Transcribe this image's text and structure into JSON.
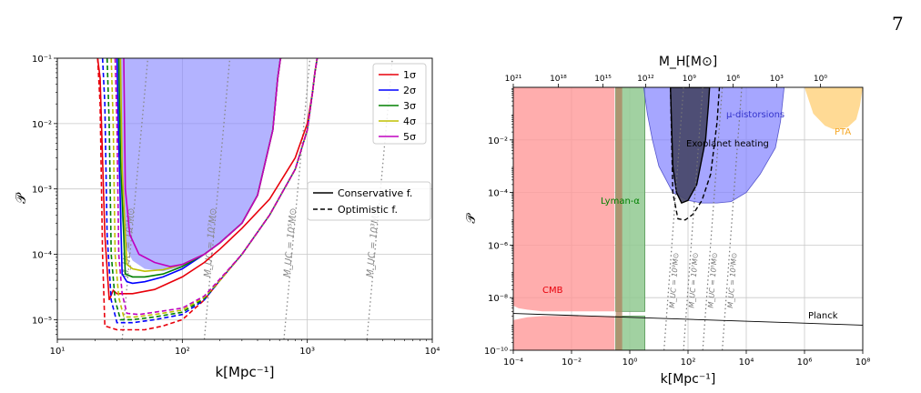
{
  "page_number": "7",
  "chart_data": [
    {
      "type": "line",
      "panel": "left",
      "xlabel": "k[Mpc⁻¹]",
      "ylabel": "𝒫",
      "xscale": "log",
      "yscale": "log",
      "xlim": [
        10,
        10000
      ],
      "ylim": [
        5e-06,
        0.1
      ],
      "x_ticks": [
        {
          "value": 10,
          "label": "10¹"
        },
        {
          "value": 100,
          "label": "10²"
        },
        {
          "value": 1000,
          "label": "10³"
        },
        {
          "value": 10000,
          "label": "10⁴"
        }
      ],
      "y_ticks": [
        {
          "value": 1e-05,
          "label": "10⁻⁵"
        },
        {
          "value": 0.0001,
          "label": "10⁻⁴"
        },
        {
          "value": 0.001,
          "label": "10⁻³"
        },
        {
          "value": 0.01,
          "label": "10⁻²"
        },
        {
          "value": 0.1,
          "label": "10⁻¹"
        }
      ],
      "grid": true,
      "legend_sigma": {
        "placement": "top-right",
        "entries": [
          {
            "name": "1σ",
            "color": "#e8000b"
          },
          {
            "name": "2σ",
            "color": "#0000ff"
          },
          {
            "name": "3σ",
            "color": "#008000"
          },
          {
            "name": "4σ",
            "color": "#bfbf00"
          },
          {
            "name": "5σ",
            "color": "#bf00bf"
          }
        ]
      },
      "legend_style": {
        "placement": "center-right",
        "entries": [
          {
            "name": "Conservative f.",
            "dash": "solid"
          },
          {
            "name": "Optimistic f.",
            "dash": "dashed"
          }
        ]
      },
      "mass_lines": [
        {
          "label": "M_UC = 10⁷M⊙",
          "x_bottom": 150,
          "x_top": 240
        },
        {
          "label": "M_UC = 10⁵M⊙",
          "x_bottom": 650,
          "x_top": 1050
        },
        {
          "label": "M_UC = 10³M⊙",
          "x_bottom": 3000,
          "x_top": 4800
        },
        {
          "label": "M_UC = 10⁹M⊙",
          "x_bottom": 33,
          "x_top": 53
        }
      ],
      "filled_region": {
        "color": "#8080ff",
        "x": [
          30,
          32,
          35,
          40,
          50,
          70,
          100,
          150,
          200,
          300,
          400,
          530,
          580,
          610,
          620
        ],
        "y": [
          0.1,
          0.0005,
          0.00013,
          8e-05,
          6e-05,
          5.5e-05,
          6.5e-05,
          0.0001,
          0.00015,
          0.0003,
          0.0008,
          0.008,
          0.05,
          0.1,
          0.1
        ]
      },
      "series": [
        {
          "name": "1σ conservative",
          "color": "#e8000b",
          "dash": "solid",
          "x": [
            21,
            22,
            24,
            26,
            28,
            30,
            40,
            60,
            100,
            150,
            200,
            300,
            500,
            800,
            1000,
            1100,
            1150,
            1200
          ],
          "y": [
            0.1,
            0.05,
            0.0002,
            2e-05,
            2.8e-05,
            2.5e-05,
            2.5e-05,
            2.9e-05,
            4.5e-05,
            7.5e-05,
            0.00012,
            0.00025,
            0.0007,
            0.003,
            0.01,
            0.03,
            0.06,
            0.1
          ]
        },
        {
          "name": "2σ conservative",
          "color": "#0000ff",
          "dash": "solid",
          "x": [
            30,
            31,
            33,
            36,
            40,
            50,
            70,
            100,
            150,
            200,
            300,
            400,
            530,
            580,
            610,
            620
          ],
          "y": [
            0.1,
            0.005,
            5e-05,
            3.8e-05,
            3.6e-05,
            3.8e-05,
            4.5e-05,
            6e-05,
            0.0001,
            0.00015,
            0.0003,
            0.0008,
            0.008,
            0.05,
            0.1,
            0.1
          ]
        },
        {
          "name": "3σ conservative",
          "color": "#008000",
          "dash": "solid",
          "x": [
            31,
            32,
            35,
            40,
            50,
            70,
            100,
            150,
            200,
            300,
            400,
            530,
            580,
            610,
            620
          ],
          "y": [
            0.1,
            0.003,
            5e-05,
            4.5e-05,
            4.5e-05,
            5e-05,
            6.5e-05,
            0.0001,
            0.00015,
            0.0003,
            0.0008,
            0.008,
            0.05,
            0.1,
            0.1
          ]
        },
        {
          "name": "4σ conservative",
          "color": "#bfbf00",
          "dash": "solid",
          "x": [
            32,
            33,
            36,
            40,
            50,
            70,
            100,
            150,
            200,
            300,
            400,
            530,
            580,
            610,
            620
          ],
          "y": [
            0.1,
            0.002,
            7e-05,
            6e-05,
            5.5e-05,
            5.8e-05,
            7e-05,
            0.0001,
            0.00015,
            0.0003,
            0.0008,
            0.008,
            0.05,
            0.1,
            0.1
          ]
        },
        {
          "name": "5σ conservative",
          "color": "#bf00bf",
          "dash": "solid",
          "x": [
            34,
            35,
            38,
            45,
            60,
            80,
            100,
            150,
            200,
            300,
            400,
            530,
            580,
            610,
            620
          ],
          "y": [
            0.1,
            0.001,
            0.0002,
            0.0001,
            7.5e-05,
            6.5e-05,
            7e-05,
            0.0001,
            0.00015,
            0.0003,
            0.0008,
            0.008,
            0.05,
            0.1,
            0.1
          ]
        },
        {
          "name": "1σ optimistic",
          "color": "#e8000b",
          "dash": "dashed",
          "x": [
            21,
            22,
            23,
            24,
            30,
            50,
            70,
            100,
            150,
            200,
            300,
            500,
            800,
            1000,
            1100,
            1150,
            1200
          ],
          "y": [
            0.1,
            0.02,
            0.0001,
            8e-06,
            7e-06,
            7e-06,
            8e-06,
            1e-05,
            2e-05,
            4e-05,
            0.0001,
            0.0004,
            0.002,
            0.008,
            0.03,
            0.06,
            0.1
          ]
        },
        {
          "name": "2σ optimistic",
          "color": "#0000ff",
          "dash": "dashed",
          "x": [
            23,
            24,
            25,
            27,
            30,
            40,
            60,
            100,
            150,
            200,
            300,
            500,
            800,
            1000,
            1100,
            1150,
            1200
          ],
          "y": [
            0.1,
            0.02,
            0.0002,
            2e-05,
            9e-06,
            9e-06,
            1e-05,
            1.2e-05,
            2e-05,
            4e-05,
            0.0001,
            0.0004,
            0.002,
            0.008,
            0.03,
            0.06,
            0.1
          ]
        },
        {
          "name": "3σ optimistic",
          "color": "#008000",
          "dash": "dashed",
          "x": [
            25,
            26,
            27,
            29,
            32,
            40,
            60,
            100,
            150,
            200,
            300,
            500,
            800,
            1000,
            1100,
            1150,
            1200
          ],
          "y": [
            0.1,
            0.01,
            0.0001,
            2e-05,
            1e-05,
            1e-05,
            1.1e-05,
            1.3e-05,
            2.1e-05,
            4e-05,
            0.0001,
            0.0004,
            0.002,
            0.008,
            0.03,
            0.06,
            0.1
          ]
        },
        {
          "name": "4σ optimistic",
          "color": "#bfbf00",
          "dash": "dashed",
          "x": [
            27,
            28,
            29,
            31,
            34,
            42,
            60,
            100,
            150,
            200,
            300,
            500,
            800,
            1000,
            1100,
            1150,
            1200
          ],
          "y": [
            0.1,
            0.01,
            0.0001,
            2.2e-05,
            1.1e-05,
            1.1e-05,
            1.2e-05,
            1.4e-05,
            2.2e-05,
            4e-05,
            0.0001,
            0.0004,
            0.002,
            0.008,
            0.03,
            0.06,
            0.1
          ]
        },
        {
          "name": "5σ optimistic",
          "color": "#bf00bf",
          "dash": "dashed",
          "x": [
            29,
            30,
            31,
            33,
            36,
            45,
            60,
            100,
            150,
            200,
            300,
            500,
            800,
            1000,
            1100,
            1150,
            1200
          ],
          "y": [
            0.1,
            0.01,
            0.0001,
            2.5e-05,
            1.25e-05,
            1.2e-05,
            1.3e-05,
            1.5e-05,
            2.3e-05,
            4.2e-05,
            0.0001,
            0.0004,
            0.002,
            0.008,
            0.03,
            0.06,
            0.1
          ]
        }
      ]
    },
    {
      "type": "area",
      "panel": "right",
      "xlabel": "k[Mpc⁻¹]",
      "ylabel": "𝒫",
      "top_xlabel": "M_H[M⊙]",
      "xscale": "log",
      "yscale": "log",
      "xlim": [
        0.0001,
        100000000
      ],
      "ylim": [
        1e-10,
        1
      ],
      "x_ticks": [
        {
          "value": 0.0001,
          "label": "10⁻⁴"
        },
        {
          "value": 0.01,
          "label": "10⁻²"
        },
        {
          "value": 1,
          "label": "10⁰"
        },
        {
          "value": 100,
          "label": "10²"
        },
        {
          "value": 10000,
          "label": "10⁴"
        },
        {
          "value": 1000000,
          "label": "10⁶"
        },
        {
          "value": 100000000,
          "label": "10⁸"
        }
      ],
      "y_ticks": [
        {
          "value": 1e-10,
          "label": "10⁻¹⁰"
        },
        {
          "value": 1e-08,
          "label": "10⁻⁸"
        },
        {
          "value": 1e-06,
          "label": "10⁻⁶"
        },
        {
          "value": 0.0001,
          "label": "10⁻⁴"
        },
        {
          "value": 0.01,
          "label": "10⁻²"
        }
      ],
      "top_ticks": [
        {
          "value": 0.0001,
          "label": "10²¹"
        },
        {
          "value": 0.0035,
          "label": "10¹⁸"
        },
        {
          "value": 0.12,
          "label": "10¹⁵"
        },
        {
          "value": 3.5,
          "label": "10¹²"
        },
        {
          "value": 110,
          "label": "10⁹"
        },
        {
          "value": 3500,
          "label": "10⁶"
        },
        {
          "value": 110000,
          "label": "10³"
        },
        {
          "value": 3500000,
          "label": "10⁰"
        }
      ],
      "grid": true,
      "regions": [
        {
          "name": "CMB",
          "color": "#ff9999",
          "label_color": "#e8000b",
          "upper": {
            "x": [
              0.0001,
              0.00015,
              0.0003,
              0.3
            ],
            "y": [
              1,
              1,
              1,
              1
            ]
          },
          "upper_bottom": {
            "x": [
              0.0001,
              0.00015,
              0.0003,
              0.001,
              0.3
            ],
            "y": [
              5e-09,
              4e-09,
              3.5e-09,
              3e-09,
              3e-09
            ]
          },
          "lower": {
            "x": [
              0.0001,
              0.0003,
              0.001,
              0.3
            ],
            "y": [
              1.4e-09,
              1.8e-09,
              2e-09,
              2e-09
            ]
          }
        },
        {
          "name": "Lyman-α",
          "color": "#90c990",
          "label_color": "#008000",
          "x_range": [
            0.33,
            3.3
          ]
        },
        {
          "name": "μ-distorsions",
          "color": "#8080ff",
          "label_color": "#3333cc",
          "x": [
            3,
            4,
            6,
            10,
            30,
            100,
            300,
            1000,
            3000,
            10000,
            30000,
            100000,
            150000,
            200000
          ],
          "y": [
            1,
            0.1,
            0.01,
            0.001,
            0.0001,
            5e-05,
            4e-05,
            4e-05,
            4.5e-05,
            0.0001,
            0.0005,
            0.005,
            0.05,
            1
          ]
        },
        {
          "name": "PTA",
          "color": "#ffd68a",
          "label_color": "#f5a623",
          "x": [
            1000000,
            2000000,
            5000000,
            10000000,
            30000000,
            60000000,
            80000000,
            100000000
          ],
          "y": [
            1,
            0.1,
            0.035,
            0.025,
            0.03,
            0.06,
            0.2,
            1
          ]
        },
        {
          "name": "Exoplanet heating",
          "color": "#454566",
          "label_color": "#000000",
          "x": [
            25,
            30,
            40,
            60,
            100,
            200,
            400,
            500,
            550
          ],
          "y": [
            1,
            0.001,
            0.0001,
            4e-05,
            5e-05,
            0.0002,
            0.01,
            0.2,
            1
          ]
        }
      ],
      "exoplanet_optimistic": {
        "x": [
          25,
          30,
          45,
          80,
          150,
          300,
          600,
          1000,
          1200
        ],
        "y": [
          1,
          0.0001,
          1e-05,
          9e-06,
          1.5e-05,
          5e-05,
          0.0005,
          0.05,
          1
        ]
      },
      "planck_line": {
        "label": "Planck",
        "x": [
          0.0001,
          100000000
        ],
        "y": [
          2.5e-09,
          9e-10
        ]
      },
      "mass_lines": [
        {
          "label": "M_UC = 10⁹M⊙",
          "x_bottom": 15,
          "x_top": 70
        },
        {
          "label": "M_UC = 10⁷M⊙",
          "x_bottom": 70,
          "x_top": 320
        },
        {
          "label": "M_UC = 10⁵M⊙",
          "x_bottom": 320,
          "x_top": 1500
        },
        {
          "label": "M_UC = 10³M⊙",
          "x_bottom": 1500,
          "x_top": 7000
        }
      ]
    }
  ]
}
